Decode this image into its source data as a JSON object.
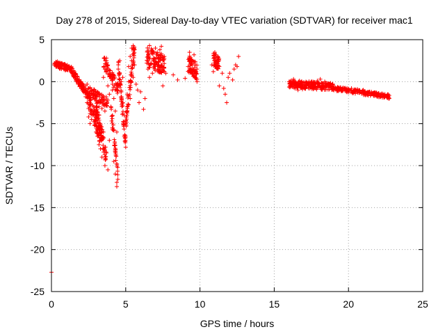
{
  "chart_data": {
    "type": "scatter",
    "title": "Day 278 of 2015, Sidereal Day-to-day VTEC variation (SDTVAR) for receiver mac1",
    "xlabel": "GPS time / hours",
    "ylabel": "SDTVAR / TECUs",
    "xlim": [
      0,
      25
    ],
    "ylim": [
      -25,
      5
    ],
    "xticks": [
      0,
      5,
      10,
      15,
      20,
      25
    ],
    "yticks": [
      5,
      0,
      -5,
      -10,
      -15,
      -20,
      -25
    ],
    "grid": true,
    "marker": "+",
    "color": "#ff0000",
    "series": [
      {
        "name": "SDTVAR",
        "points": [
          [
            0.0,
            -22.7
          ],
          [
            0.2,
            2.0
          ],
          [
            0.3,
            2.2
          ],
          [
            0.4,
            2.4
          ],
          [
            0.5,
            2.3
          ],
          [
            0.6,
            2.1
          ],
          [
            0.7,
            2.2
          ],
          [
            0.8,
            2.0
          ],
          [
            0.9,
            2.1
          ],
          [
            1.0,
            1.9
          ],
          [
            1.1,
            1.7
          ],
          [
            1.2,
            1.5
          ],
          [
            1.3,
            1.2
          ],
          [
            1.4,
            1.0
          ],
          [
            1.5,
            0.7
          ],
          [
            1.6,
            0.4
          ],
          [
            1.7,
            0.0
          ],
          [
            1.8,
            -0.3
          ],
          [
            1.9,
            -0.6
          ],
          [
            2.0,
            -0.8
          ],
          [
            2.1,
            -1.0
          ],
          [
            2.2,
            -1.3
          ],
          [
            2.3,
            -0.5
          ],
          [
            2.3,
            -1.8
          ],
          [
            2.4,
            -2.5
          ],
          [
            2.4,
            -0.3
          ],
          [
            2.5,
            -3.2
          ],
          [
            2.5,
            -4.2
          ],
          [
            2.6,
            -0.7
          ],
          [
            2.6,
            -3.8
          ],
          [
            2.6,
            -5.0
          ],
          [
            2.7,
            -1.2
          ],
          [
            2.7,
            -4.5
          ],
          [
            2.8,
            -1.5
          ],
          [
            2.8,
            -4.0
          ],
          [
            2.9,
            -2.0
          ],
          [
            2.9,
            -3.5
          ],
          [
            2.9,
            -5.2
          ],
          [
            3.0,
            -2.2
          ],
          [
            3.0,
            -6.0
          ],
          [
            3.1,
            -2.5
          ],
          [
            3.1,
            -6.5
          ],
          [
            3.2,
            -3.0
          ],
          [
            3.2,
            -7.5
          ],
          [
            3.3,
            -2.4
          ],
          [
            3.3,
            -8.0
          ],
          [
            3.4,
            -3.2
          ],
          [
            3.4,
            -9.0
          ],
          [
            3.5,
            -2.8
          ],
          [
            3.5,
            -6.0
          ],
          [
            3.6,
            -3.5
          ],
          [
            3.6,
            -10.0
          ],
          [
            3.7,
            -2.6
          ],
          [
            3.7,
            -8.5
          ],
          [
            3.8,
            -2.2
          ],
          [
            3.8,
            -10.5
          ],
          [
            3.5,
            0.5
          ],
          [
            3.6,
            1.5
          ],
          [
            3.7,
            2.8
          ],
          [
            3.8,
            2.0
          ],
          [
            3.8,
            -0.5
          ],
          [
            3.9,
            1.0
          ],
          [
            3.9,
            -1.5
          ],
          [
            3.9,
            -7.0
          ],
          [
            4.0,
            0.8
          ],
          [
            4.0,
            -3.0
          ],
          [
            4.1,
            -1.0
          ],
          [
            4.1,
            -5.5
          ],
          [
            4.2,
            -2.0
          ],
          [
            4.2,
            -9.5
          ],
          [
            4.3,
            -3.5
          ],
          [
            4.3,
            -11.0
          ],
          [
            4.4,
            -6.0
          ],
          [
            4.4,
            -12.0
          ],
          [
            4.4,
            -12.5
          ],
          [
            4.5,
            1.5
          ],
          [
            4.5,
            -0.5
          ],
          [
            4.6,
            2.5
          ],
          [
            4.6,
            1.0
          ],
          [
            4.7,
            0.0
          ],
          [
            4.7,
            -1.2
          ],
          [
            4.8,
            -2.5
          ],
          [
            4.8,
            0.5
          ],
          [
            4.9,
            -4.0
          ],
          [
            4.9,
            -6.5
          ],
          [
            5.0,
            -7.8
          ],
          [
            5.0,
            -5.0
          ],
          [
            5.1,
            -3.0
          ],
          [
            5.1,
            -1.5
          ],
          [
            5.2,
            0.0
          ],
          [
            5.2,
            1.8
          ],
          [
            5.3,
            3.0
          ],
          [
            5.3,
            -2.0
          ],
          [
            5.4,
            2.5
          ],
          [
            5.4,
            4.0
          ],
          [
            5.5,
            4.3
          ],
          [
            5.5,
            0.5
          ],
          [
            5.6,
            3.8
          ],
          [
            5.6,
            2.0
          ],
          [
            5.7,
            -0.3
          ],
          [
            5.8,
            -1.0
          ],
          [
            5.9,
            -2.5
          ],
          [
            6.0,
            -1.2
          ],
          [
            6.2,
            -3.3
          ],
          [
            6.3,
            -2.0
          ],
          [
            6.5,
            1.5
          ],
          [
            6.5,
            3.0
          ],
          [
            6.6,
            0.5
          ],
          [
            6.6,
            4.3
          ],
          [
            6.7,
            2.2
          ],
          [
            6.8,
            1.0
          ],
          [
            6.8,
            3.5
          ],
          [
            6.9,
            2.8
          ],
          [
            7.0,
            1.8
          ],
          [
            7.0,
            4.0
          ],
          [
            7.1,
            3.2
          ],
          [
            7.2,
            2.4
          ],
          [
            7.3,
            1.2
          ],
          [
            7.3,
            3.8
          ],
          [
            7.4,
            4.2
          ],
          [
            7.5,
            -0.5
          ],
          [
            7.5,
            2.5
          ],
          [
            7.6,
            3.0
          ],
          [
            7.7,
            1.0
          ],
          [
            8.2,
            0.8
          ],
          [
            8.5,
            0.2
          ],
          [
            9.0,
            0.4
          ],
          [
            9.2,
            1.8
          ],
          [
            9.3,
            3.5
          ],
          [
            9.4,
            2.5
          ],
          [
            9.5,
            1.0
          ],
          [
            9.5,
            2.0
          ],
          [
            9.6,
            3.2
          ],
          [
            9.7,
            0.5
          ],
          [
            9.8,
            1.5
          ],
          [
            9.8,
            0.0
          ],
          [
            10.8,
            2.0
          ],
          [
            10.9,
            1.2
          ],
          [
            11.0,
            3.5
          ],
          [
            11.1,
            2.5
          ],
          [
            11.2,
            3.0
          ],
          [
            11.3,
            1.8
          ],
          [
            11.3,
            -0.5
          ],
          [
            11.5,
            1.0
          ],
          [
            11.6,
            -0.8
          ],
          [
            11.7,
            -1.5
          ],
          [
            11.8,
            -2.5
          ],
          [
            11.9,
            0.5
          ],
          [
            12.0,
            1.0
          ],
          [
            12.2,
            0.2
          ],
          [
            12.3,
            1.5
          ],
          [
            12.4,
            2.0
          ],
          [
            12.5,
            1.8
          ],
          [
            12.6,
            3.0
          ],
          [
            16.0,
            0.0
          ],
          [
            16.1,
            -0.5
          ],
          [
            16.2,
            -0.2
          ],
          [
            16.3,
            0.3
          ],
          [
            16.4,
            -0.8
          ],
          [
            16.5,
            -0.4
          ],
          [
            16.6,
            -1.0
          ],
          [
            16.7,
            0.1
          ],
          [
            16.8,
            -0.6
          ],
          [
            16.9,
            -0.9
          ],
          [
            17.0,
            -0.3
          ],
          [
            17.1,
            -0.7
          ],
          [
            17.2,
            -0.1
          ],
          [
            17.3,
            -0.5
          ],
          [
            17.4,
            -0.8
          ],
          [
            17.5,
            0.0
          ],
          [
            17.6,
            -0.4
          ],
          [
            17.7,
            -0.2
          ],
          [
            17.8,
            -0.6
          ],
          [
            17.9,
            0.1
          ],
          [
            18.0,
            -0.3
          ],
          [
            18.1,
            0.3
          ],
          [
            18.2,
            -0.2
          ],
          [
            18.3,
            -0.5
          ],
          [
            18.4,
            0.0
          ],
          [
            18.5,
            -0.4
          ],
          [
            18.6,
            -0.2
          ],
          [
            18.7,
            -0.7
          ],
          [
            18.8,
            -0.5
          ],
          [
            18.9,
            -0.9
          ],
          [
            19.0,
            -0.7
          ],
          [
            19.2,
            -0.8
          ],
          [
            19.4,
            -1.0
          ],
          [
            19.6,
            -1.1
          ],
          [
            19.8,
            -0.9
          ],
          [
            20.0,
            -1.0
          ],
          [
            20.2,
            -0.8
          ],
          [
            20.4,
            -1.1
          ],
          [
            20.6,
            -0.9
          ],
          [
            20.8,
            -1.2
          ],
          [
            21.0,
            -1.0
          ],
          [
            21.2,
            -1.3
          ],
          [
            21.4,
            -1.2
          ],
          [
            21.6,
            -1.4
          ],
          [
            21.8,
            -1.3
          ],
          [
            22.0,
            -1.5
          ],
          [
            22.2,
            -1.6
          ],
          [
            22.4,
            -1.7
          ],
          [
            22.6,
            -1.8
          ],
          [
            22.7,
            -1.9
          ]
        ],
        "dense_segments": [
          {
            "x0": 0.2,
            "x1": 1.3,
            "y0": 2.1,
            "y1": 1.5,
            "spread": 0.35,
            "count": 90
          },
          {
            "x0": 1.3,
            "x1": 2.4,
            "y0": 1.5,
            "y1": -1.5,
            "spread": 0.4,
            "count": 90
          },
          {
            "x0": 2.4,
            "x1": 3.8,
            "y0": -1.0,
            "y1": -2.5,
            "spread": 0.6,
            "count": 80
          },
          {
            "x0": 2.4,
            "x1": 3.3,
            "y0": -1.5,
            "y1": -6.5,
            "spread": 1.0,
            "count": 80
          },
          {
            "x0": 3.0,
            "x1": 3.7,
            "y0": -3.0,
            "y1": -9.0,
            "spread": 1.0,
            "count": 70
          },
          {
            "x0": 3.5,
            "x1": 4.5,
            "y0": 2.5,
            "y1": -1.0,
            "spread": 0.8,
            "count": 60
          },
          {
            "x0": 4.0,
            "x1": 4.5,
            "y0": -3.0,
            "y1": -11.5,
            "spread": 0.8,
            "count": 40
          },
          {
            "x0": 4.5,
            "x1": 5.0,
            "y0": 2.0,
            "y1": -7.5,
            "spread": 0.8,
            "count": 50
          },
          {
            "x0": 5.0,
            "x1": 5.6,
            "y0": -5.0,
            "y1": 4.2,
            "spread": 0.8,
            "count": 60
          },
          {
            "x0": 6.4,
            "x1": 7.6,
            "y0": 3.0,
            "y1": 2.0,
            "spread": 1.2,
            "count": 110
          },
          {
            "x0": 9.2,
            "x1": 9.8,
            "y0": 2.2,
            "y1": 1.2,
            "spread": 1.0,
            "count": 70
          },
          {
            "x0": 10.9,
            "x1": 11.3,
            "y0": 2.8,
            "y1": 2.0,
            "spread": 0.8,
            "count": 40
          },
          {
            "x0": 16.0,
            "x1": 19.0,
            "y0": -0.3,
            "y1": -0.6,
            "spread": 0.45,
            "count": 200
          },
          {
            "x0": 19.0,
            "x1": 22.8,
            "y0": -0.8,
            "y1": -1.8,
            "spread": 0.25,
            "count": 160
          }
        ]
      }
    ]
  }
}
